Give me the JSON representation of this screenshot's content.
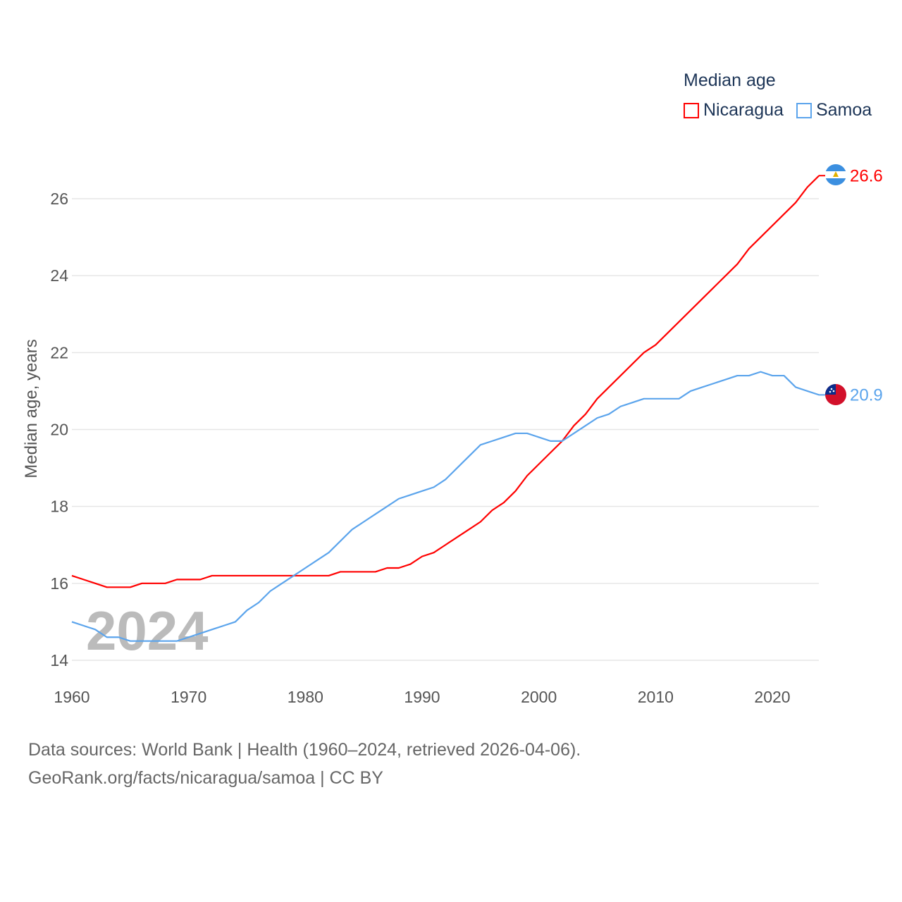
{
  "chart_data": {
    "type": "line",
    "title": "Median age",
    "xlabel": "",
    "ylabel": "Median age, years",
    "xlim": [
      1960,
      2024
    ],
    "ylim": [
      14,
      27
    ],
    "xticks": [
      1960,
      1970,
      1980,
      1990,
      2000,
      2010,
      2020
    ],
    "yticks": [
      14,
      16,
      18,
      20,
      22,
      24,
      26
    ],
    "grid": true,
    "legend_position": "top-right",
    "year_label": "2024",
    "x": [
      1960,
      1961,
      1962,
      1963,
      1964,
      1965,
      1966,
      1967,
      1968,
      1969,
      1970,
      1971,
      1972,
      1973,
      1974,
      1975,
      1976,
      1977,
      1978,
      1979,
      1980,
      1981,
      1982,
      1983,
      1984,
      1985,
      1986,
      1987,
      1988,
      1989,
      1990,
      1991,
      1992,
      1993,
      1994,
      1995,
      1996,
      1997,
      1998,
      1999,
      2000,
      2001,
      2002,
      2003,
      2004,
      2005,
      2006,
      2007,
      2008,
      2009,
      2010,
      2011,
      2012,
      2013,
      2014,
      2015,
      2016,
      2017,
      2018,
      2019,
      2020,
      2021,
      2022,
      2023,
      2024
    ],
    "series": [
      {
        "name": "Nicaragua",
        "color": "#ff0000",
        "end_label": "26.6",
        "values": [
          16.2,
          16.1,
          16.0,
          15.9,
          15.9,
          15.9,
          16.0,
          16.0,
          16.0,
          16.1,
          16.1,
          16.1,
          16.2,
          16.2,
          16.2,
          16.2,
          16.2,
          16.2,
          16.2,
          16.2,
          16.2,
          16.2,
          16.2,
          16.3,
          16.3,
          16.3,
          16.3,
          16.4,
          16.4,
          16.5,
          16.7,
          16.8,
          17.0,
          17.2,
          17.4,
          17.6,
          17.9,
          18.1,
          18.4,
          18.8,
          19.1,
          19.4,
          19.7,
          20.1,
          20.4,
          20.8,
          21.1,
          21.4,
          21.7,
          22.0,
          22.2,
          22.5,
          22.8,
          23.1,
          23.4,
          23.7,
          24.0,
          24.3,
          24.7,
          25.0,
          25.3,
          25.6,
          25.9,
          26.3,
          26.6
        ]
      },
      {
        "name": "Samoa",
        "color": "#5ba4ec",
        "end_label": "20.9",
        "values": [
          15.0,
          14.9,
          14.8,
          14.6,
          14.6,
          14.5,
          14.5,
          14.5,
          14.5,
          14.5,
          14.6,
          14.7,
          14.8,
          14.9,
          15.0,
          15.3,
          15.5,
          15.8,
          16.0,
          16.2,
          16.4,
          16.6,
          16.8,
          17.1,
          17.4,
          17.6,
          17.8,
          18.0,
          18.2,
          18.3,
          18.4,
          18.5,
          18.7,
          19.0,
          19.3,
          19.6,
          19.7,
          19.8,
          19.9,
          19.9,
          19.8,
          19.7,
          19.7,
          19.9,
          20.1,
          20.3,
          20.4,
          20.6,
          20.7,
          20.8,
          20.8,
          20.8,
          20.8,
          21.0,
          21.1,
          21.2,
          21.3,
          21.4,
          21.4,
          21.5,
          21.4,
          21.4,
          21.1,
          21.0,
          20.9
        ]
      }
    ]
  },
  "footer": {
    "line1": "Data sources: World Bank | Health (1960–2024, retrieved 2026-04-06).",
    "line2": "GeoRank.org/facts/nicaragua/samoa | CC BY"
  }
}
